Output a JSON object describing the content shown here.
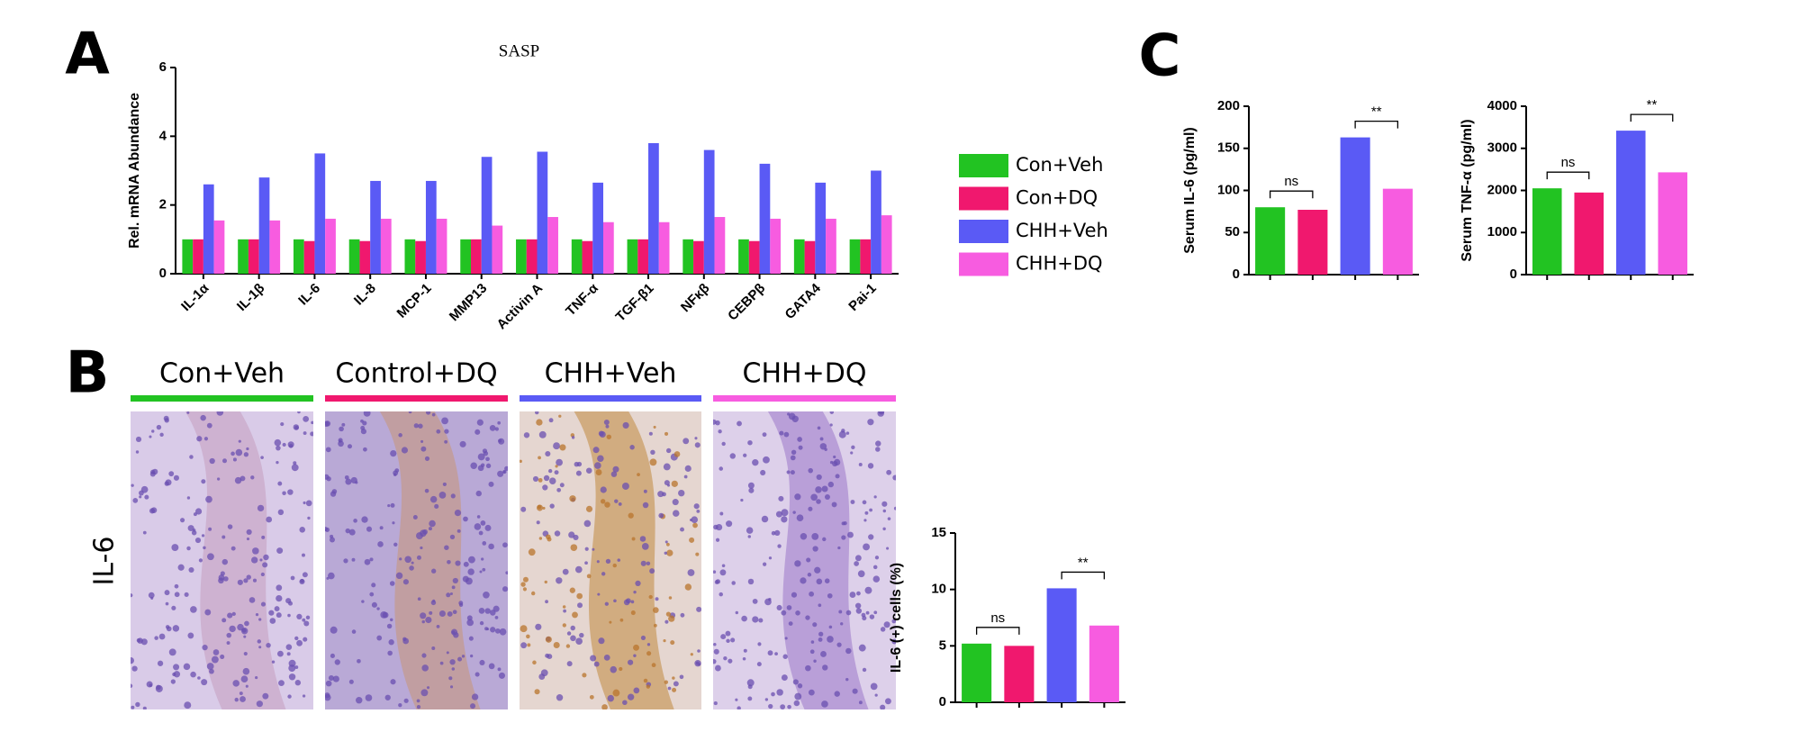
{
  "panels": {
    "a": "A",
    "b": "B",
    "c": "C"
  },
  "histology": {
    "row_label": "IL-6",
    "columns": [
      {
        "title": "Con+Veh",
        "color": "#22c322"
      },
      {
        "title": "Control+DQ",
        "color": "#f0186e"
      },
      {
        "title": "CHH+Veh",
        "color": "#5a5af5"
      },
      {
        "title": "CHH+DQ",
        "color": "#f75ce0"
      }
    ]
  },
  "chart_data": [
    {
      "type": "bar",
      "title": "SASP",
      "y_label": "Rel. mRNA Abundance",
      "categories": [
        "IL-1α",
        "IL-1β",
        "IL-6",
        "IL-8",
        "MCP-1",
        "MMP13",
        "Activin A",
        "TNF-α",
        "TGF-β1",
        "NFκβ",
        "CEBPβ",
        "GATA4",
        "Pai-1"
      ],
      "series": [
        {
          "name": "Con+Veh",
          "color": "#22c322",
          "values": [
            1.0,
            1.0,
            1.0,
            1.0,
            1.0,
            1.0,
            1.0,
            1.0,
            1.0,
            1.0,
            1.0,
            1.0,
            1.0
          ]
        },
        {
          "name": "Con+DQ",
          "color": "#f0186e",
          "values": [
            1.0,
            1.0,
            0.95,
            0.95,
            0.95,
            1.0,
            1.0,
            0.95,
            1.0,
            0.95,
            0.95,
            0.95,
            1.0
          ]
        },
        {
          "name": "CHH+Veh",
          "color": "#5a5af5",
          "values": [
            2.6,
            2.8,
            3.5,
            2.7,
            2.7,
            3.4,
            3.55,
            2.65,
            3.8,
            3.6,
            3.2,
            2.65,
            3.0
          ]
        },
        {
          "name": "CHH+DQ",
          "color": "#f75ce0",
          "values": [
            1.55,
            1.55,
            1.6,
            1.6,
            1.6,
            1.4,
            1.65,
            1.5,
            1.5,
            1.65,
            1.6,
            1.6,
            1.7
          ]
        }
      ],
      "ylim": [
        0,
        6
      ],
      "yticks": [
        0,
        2,
        4,
        6
      ]
    },
    {
      "type": "bar",
      "y_label": "Serum IL-6 (pg/ml)",
      "categories": [
        null,
        null,
        null,
        null
      ],
      "values": [
        80,
        77,
        163,
        102
      ],
      "colors": [
        "#22c322",
        "#f0186e",
        "#5a5af5",
        "#f75ce0"
      ],
      "ylim": [
        0,
        200
      ],
      "yticks": [
        0,
        50,
        100,
        150,
        200
      ],
      "annotations": [
        "ns",
        "**"
      ]
    },
    {
      "type": "bar",
      "y_label": "Serum TNF-α (pg/ml)",
      "categories": [
        null,
        null,
        null,
        null
      ],
      "values": [
        2050,
        1950,
        3420,
        2430
      ],
      "colors": [
        "#22c322",
        "#f0186e",
        "#5a5af5",
        "#f75ce0"
      ],
      "ylim": [
        0,
        4000
      ],
      "yticks": [
        0,
        1000,
        2000,
        3000,
        4000
      ],
      "annotations": [
        "ns",
        "**"
      ]
    },
    {
      "type": "bar",
      "y_label": "IL-6 (+) cells (%)",
      "categories": [
        null,
        null,
        null,
        null
      ],
      "values": [
        5.2,
        5.0,
        10.1,
        6.8
      ],
      "colors": [
        "#22c322",
        "#f0186e",
        "#5a5af5",
        "#f75ce0"
      ],
      "ylim": [
        0,
        15
      ],
      "yticks": [
        0,
        5,
        10,
        15
      ],
      "annotations": [
        "ns",
        "**"
      ]
    }
  ]
}
